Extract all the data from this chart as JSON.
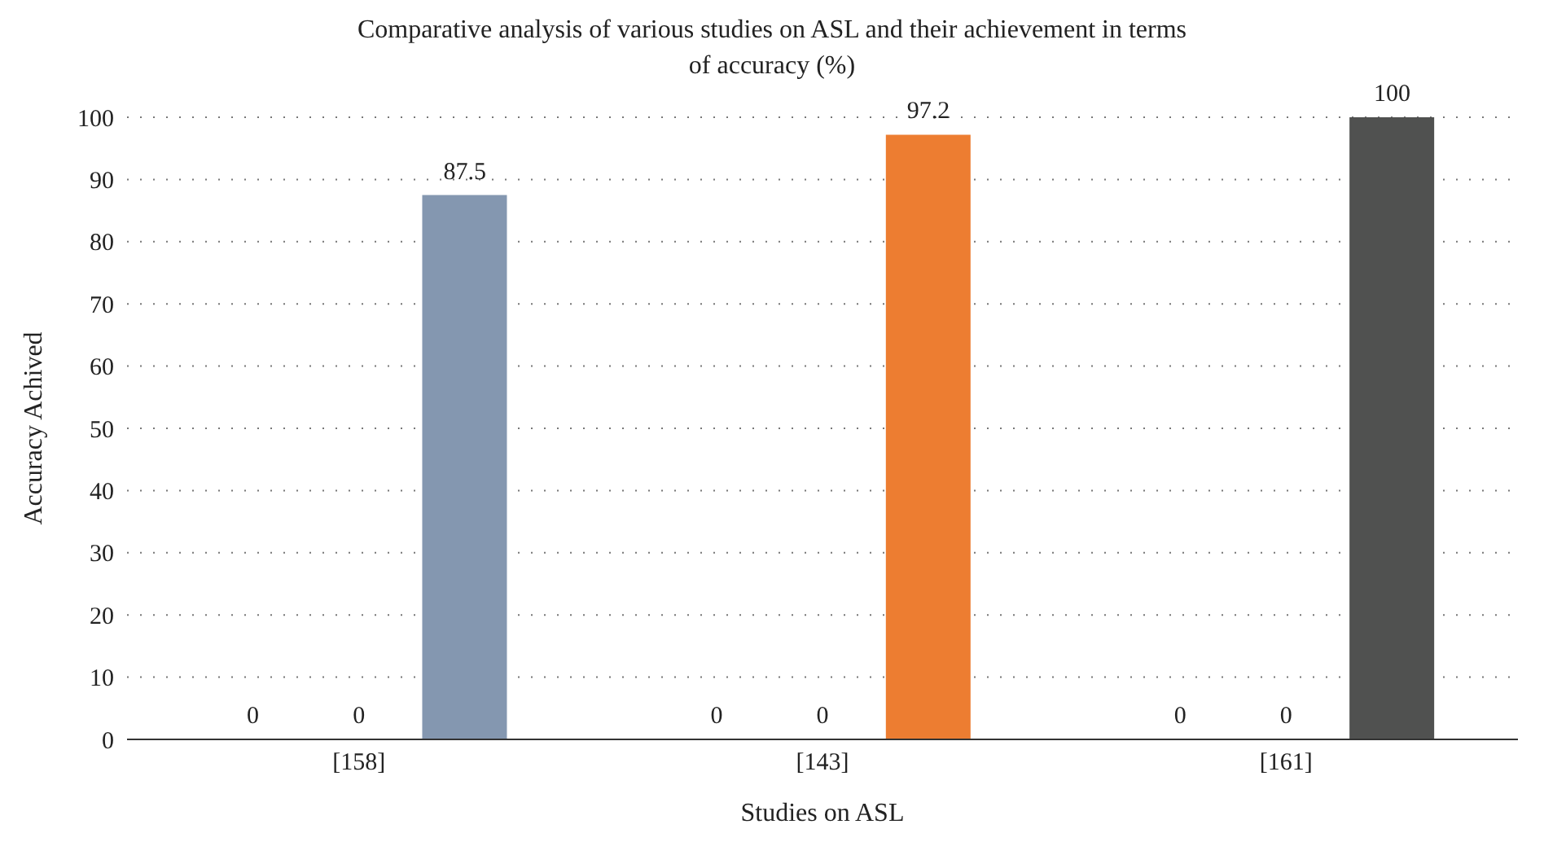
{
  "chart_data": {
    "type": "bar",
    "title": "Comparative analysis of various studies on ASL and their achievement in terms of accuracy (%)",
    "xlabel": "Studies on ASL",
    "ylabel": "Accuracy Achived",
    "categories": [
      "[158]",
      "[143]",
      "[161]"
    ],
    "series": [
      {
        "values": [
          0,
          0,
          0
        ]
      },
      {
        "values": [
          0,
          0,
          0
        ]
      },
      {
        "values": [
          87.5,
          97.2,
          100
        ],
        "colors": [
          "#8497b0",
          "#ed7d31",
          "#505150"
        ]
      }
    ],
    "ylim": [
      0,
      100
    ],
    "yticks": [
      0,
      10,
      20,
      30,
      40,
      50,
      60,
      70,
      80,
      90,
      100
    ],
    "grid": "y",
    "data_labels": true,
    "legend": false
  }
}
